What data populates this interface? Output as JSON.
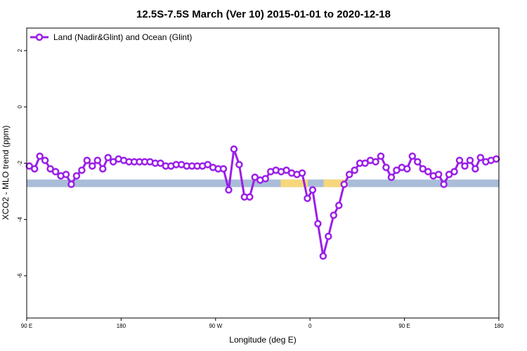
{
  "chart_data": {
    "type": "line",
    "title": "12.5S-7.5S March (Ver 10)   2015-01-01 to 2020-12-18",
    "xlabel": "Longitude (deg E)",
    "ylabel": "XCO2 - MLO trend (ppm)",
    "x_tick_labels": [
      "90 E",
      "180",
      "90 W",
      "0",
      "90 E",
      "180"
    ],
    "x_tick_values": [
      90,
      180,
      270,
      360,
      450,
      540
    ],
    "xlim": [
      90,
      540
    ],
    "y_tick_labels": [
      "2",
      "0",
      "-2",
      "-4",
      "-6"
    ],
    "y_tick_values": [
      2,
      0,
      -2,
      -4,
      -6
    ],
    "ylim": [
      -7.5,
      2.8
    ],
    "grid": false,
    "legend": "top-left",
    "colors": {
      "series": "#9b1fe8",
      "ocean": "#a9bdd8",
      "land": "#f6d77a"
    },
    "background_band": {
      "y_range": [
        -2.58,
        -2.85
      ],
      "land_x_ranges": [
        [
          332,
          358
        ],
        [
          373,
          396
        ]
      ]
    },
    "series": [
      {
        "name": "Land (Nadir&Glint) and Ocean (Glint)",
        "x": [
          92.5,
          97.5,
          102.5,
          107.5,
          112.5,
          117.5,
          122.5,
          127.5,
          132.5,
          137.5,
          142.5,
          147.5,
          152.5,
          157.5,
          162.5,
          167.5,
          172.5,
          177.5,
          182.5,
          187.5,
          192.5,
          197.5,
          202.5,
          207.5,
          212.5,
          217.5,
          222.5,
          227.5,
          232.5,
          237.5,
          242.5,
          247.5,
          252.5,
          257.5,
          262.5,
          267.5,
          272.5,
          277.5,
          282.5,
          287.5,
          292.5,
          297.5,
          302.5,
          307.5,
          312.5,
          317.5,
          322.5,
          327.5,
          332.5,
          337.5,
          342.5,
          347.5,
          352.5,
          357.5,
          362.5,
          367.5,
          372.5,
          377.5,
          382.5,
          387.5,
          392.5,
          397.5,
          402.5,
          407.5,
          412.5,
          417.5,
          422.5,
          427.5,
          432.5,
          437.5,
          442.5,
          447.5,
          452.5,
          457.5,
          462.5,
          467.5,
          472.5,
          477.5,
          482.5,
          487.5,
          492.5,
          497.5,
          502.5,
          507.5,
          512.5,
          517.5,
          522.5,
          527.5,
          532.5,
          537.5
        ],
        "y": [
          -2.1,
          -2.2,
          -1.75,
          -1.9,
          -2.2,
          -2.3,
          -2.45,
          -2.4,
          -2.75,
          -2.45,
          -2.25,
          -1.9,
          -2.1,
          -1.9,
          -2.2,
          -1.8,
          -1.95,
          -1.85,
          -1.9,
          -1.95,
          -1.95,
          -1.95,
          -1.95,
          -1.95,
          -2.0,
          -2.0,
          -2.1,
          -2.1,
          -2.05,
          -2.05,
          -2.1,
          -2.1,
          -2.1,
          -2.1,
          -2.05,
          -2.15,
          -2.2,
          -2.2,
          -2.95,
          -1.5,
          -2.05,
          -3.2,
          -3.2,
          -2.5,
          -2.6,
          -2.55,
          -2.3,
          -2.25,
          -2.3,
          -2.25,
          -2.35,
          -2.4,
          -2.35,
          -3.25,
          -2.95,
          -4.15,
          -5.3,
          -4.6,
          -3.85,
          -3.5,
          -2.75,
          -2.4,
          -2.25,
          -2.0,
          -2.0,
          -1.9,
          -1.95,
          -1.75,
          -2.15,
          -2.5,
          -2.25,
          -2.15,
          -2.2,
          -1.75,
          -1.95,
          -2.2,
          -2.3,
          -2.45,
          -2.4,
          -2.75,
          -2.4,
          -2.3,
          -1.9,
          -2.1,
          -1.9,
          -2.2,
          -1.8,
          -1.95,
          -1.9,
          -1.85
        ]
      }
    ]
  }
}
